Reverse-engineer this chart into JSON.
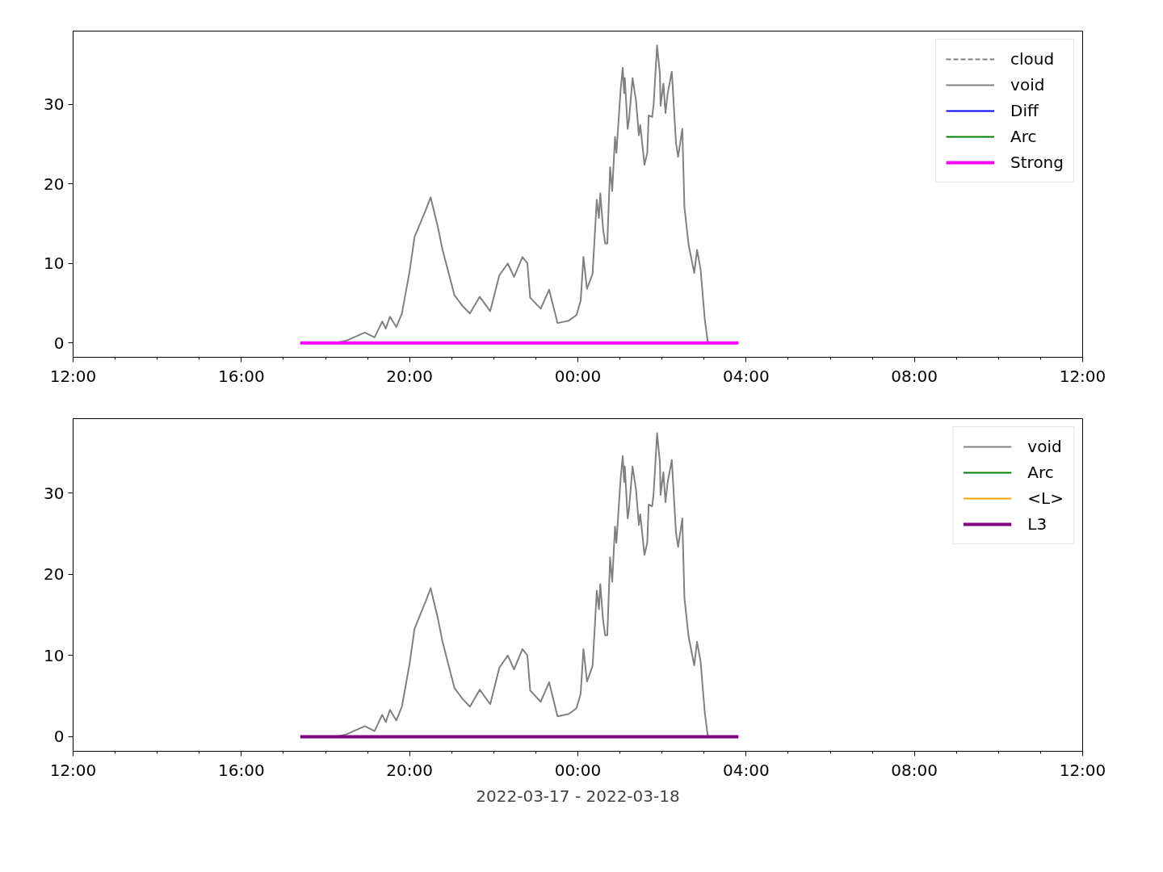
{
  "chart_data": [
    {
      "type": "line",
      "xlim": [
        "2022-03-17T12:00",
        "2022-03-18T12:00"
      ],
      "ylim": [
        -1.8,
        39.2
      ],
      "yticks": [
        0,
        10,
        20,
        30
      ],
      "grid": false,
      "legend": "top right",
      "xticks": [
        {
          "value": "2022-03-17T12:00",
          "label": "12:00"
        },
        {
          "value": "2022-03-17T13:00",
          "label": null
        },
        {
          "value": "2022-03-17T14:00",
          "label": null
        },
        {
          "value": "2022-03-17T15:00",
          "label": null
        },
        {
          "value": "2022-03-17T16:00",
          "label": "16:00"
        },
        {
          "value": "2022-03-17T17:00",
          "label": null
        },
        {
          "value": "2022-03-17T18:00",
          "label": null
        },
        {
          "value": "2022-03-17T19:00",
          "label": null
        },
        {
          "value": "2022-03-17T20:00",
          "label": "20:00"
        },
        {
          "value": "2022-03-17T21:00",
          "label": null
        },
        {
          "value": "2022-03-17T22:00",
          "label": null
        },
        {
          "value": "2022-03-17T23:00",
          "label": null
        },
        {
          "value": "2022-03-18T00:00",
          "label": "00:00"
        },
        {
          "value": "2022-03-18T01:00",
          "label": null
        },
        {
          "value": "2022-03-18T02:00",
          "label": null
        },
        {
          "value": "2022-03-18T03:00",
          "label": null
        },
        {
          "value": "2022-03-18T04:00",
          "label": "04:00"
        },
        {
          "value": "2022-03-18T05:00",
          "label": null
        },
        {
          "value": "2022-03-18T06:00",
          "label": null
        },
        {
          "value": "2022-03-18T07:00",
          "label": null
        },
        {
          "value": "2022-03-18T08:00",
          "label": "08:00"
        },
        {
          "value": "2022-03-18T09:00",
          "label": null
        },
        {
          "value": "2022-03-18T10:00",
          "label": null
        },
        {
          "value": "2022-03-18T11:00",
          "label": null
        },
        {
          "value": "2022-03-18T12:00",
          "label": "12:00"
        }
      ],
      "series": [
        {
          "name": "cloud",
          "color": "#808080",
          "line_style": "dashed"
        },
        {
          "name": "void",
          "color": "#808080",
          "x": [
            "2022-03-17T18:15",
            "2022-03-17T18:30",
            "2022-03-17T18:56",
            "2022-03-17T19:10",
            "2022-03-17T19:21",
            "2022-03-17T19:26",
            "2022-03-17T19:32",
            "2022-03-17T19:41",
            "2022-03-17T19:49",
            "2022-03-17T20:00",
            "2022-03-17T20:07",
            "2022-03-17T20:15",
            "2022-03-17T20:23",
            "2022-03-17T20:30",
            "2022-03-17T20:40",
            "2022-03-17T20:47",
            "2022-03-17T20:55",
            "2022-03-17T21:04",
            "2022-03-17T21:15",
            "2022-03-17T21:26",
            "2022-03-17T21:40",
            "2022-03-17T21:55",
            "2022-03-17T22:08",
            "2022-03-17T22:20",
            "2022-03-17T22:29",
            "2022-03-17T22:41",
            "2022-03-17T22:48",
            "2022-03-17T22:52",
            "2022-03-17T23:07",
            "2022-03-17T23:19",
            "2022-03-17T23:31",
            "2022-03-17T23:47",
            "2022-03-17T23:58",
            "2022-03-18T00:04",
            "2022-03-18T00:08",
            "2022-03-18T00:13",
            "2022-03-18T00:21",
            "2022-03-18T00:27",
            "2022-03-18T00:30",
            "2022-03-18T00:32",
            "2022-03-18T00:36",
            "2022-03-18T00:39",
            "2022-03-18T00:42",
            "2022-03-18T00:46",
            "2022-03-18T00:49",
            "2022-03-18T00:53",
            "2022-03-18T00:55",
            "2022-03-18T01:01",
            "2022-03-18T01:04",
            "2022-03-18T01:06",
            "2022-03-18T01:07",
            "2022-03-18T01:11",
            "2022-03-18T01:13",
            "2022-03-18T01:18",
            "2022-03-18T01:23",
            "2022-03-18T01:27",
            "2022-03-18T01:29",
            "2022-03-18T01:35",
            "2022-03-18T01:39",
            "2022-03-18T01:41",
            "2022-03-18T01:46",
            "2022-03-18T01:48",
            "2022-03-18T01:53",
            "2022-03-18T01:57",
            "2022-03-18T01:58",
            "2022-03-18T02:02",
            "2022-03-18T02:05",
            "2022-03-18T02:08",
            "2022-03-18T02:14",
            "2022-03-18T02:20",
            "2022-03-18T02:23",
            "2022-03-18T02:29",
            "2022-03-18T02:32",
            "2022-03-18T02:38",
            "2022-03-18T02:46",
            "2022-03-18T02:50",
            "2022-03-18T02:55",
            "2022-03-18T03:01",
            "2022-03-18T03:05",
            "2022-03-18T03:07"
          ],
          "values": [
            0.0,
            0.3,
            1.3,
            0.7,
            2.7,
            1.8,
            3.3,
            2.0,
            3.7,
            9.0,
            13.3,
            15.0,
            16.7,
            18.3,
            14.7,
            11.7,
            9.0,
            6.0,
            4.7,
            3.7,
            5.8,
            4.0,
            8.5,
            10.0,
            8.3,
            10.8,
            10.0,
            5.7,
            4.3,
            6.7,
            2.5,
            2.8,
            3.5,
            5.3,
            10.8,
            6.8,
            8.7,
            18.0,
            15.7,
            18.8,
            14.3,
            12.5,
            12.5,
            22.1,
            19.1,
            25.9,
            23.9,
            31.8,
            34.6,
            31.4,
            33.3,
            26.9,
            28.1,
            33.3,
            30.4,
            26.1,
            27.4,
            22.4,
            23.9,
            28.6,
            28.4,
            29.9,
            37.4,
            33.8,
            29.8,
            32.6,
            28.9,
            31.3,
            34.1,
            25.1,
            23.4,
            26.9,
            17.1,
            12.3,
            8.8,
            11.7,
            9.3,
            3.0,
            0.3,
            0.0
          ]
        },
        {
          "name": "Diff",
          "color": "#0000ff"
        },
        {
          "name": "Arc",
          "color": "#008000"
        },
        {
          "name": "Strong",
          "color": "#ff00ff",
          "x": [
            "2022-03-17T17:24",
            "2022-03-18T03:49"
          ],
          "values": [
            0,
            0
          ]
        }
      ]
    },
    {
      "type": "line",
      "xlabel": "2022-03-17 - 2022-03-18",
      "xlim": [
        "2022-03-17T12:00",
        "2022-03-18T12:00"
      ],
      "ylim": [
        -1.8,
        39.2
      ],
      "yticks": [
        0,
        10,
        20,
        30
      ],
      "grid": false,
      "legend": "top right",
      "xticks": [
        {
          "value": "2022-03-17T12:00",
          "label": "12:00"
        },
        {
          "value": "2022-03-17T13:00",
          "label": null
        },
        {
          "value": "2022-03-17T14:00",
          "label": null
        },
        {
          "value": "2022-03-17T15:00",
          "label": null
        },
        {
          "value": "2022-03-17T16:00",
          "label": "16:00"
        },
        {
          "value": "2022-03-17T17:00",
          "label": null
        },
        {
          "value": "2022-03-17T18:00",
          "label": null
        },
        {
          "value": "2022-03-17T19:00",
          "label": null
        },
        {
          "value": "2022-03-17T20:00",
          "label": "20:00"
        },
        {
          "value": "2022-03-17T21:00",
          "label": null
        },
        {
          "value": "2022-03-17T22:00",
          "label": null
        },
        {
          "value": "2022-03-17T23:00",
          "label": null
        },
        {
          "value": "2022-03-18T00:00",
          "label": "00:00"
        },
        {
          "value": "2022-03-18T01:00",
          "label": null
        },
        {
          "value": "2022-03-18T02:00",
          "label": null
        },
        {
          "value": "2022-03-18T03:00",
          "label": null
        },
        {
          "value": "2022-03-18T04:00",
          "label": "04:00"
        },
        {
          "value": "2022-03-18T05:00",
          "label": null
        },
        {
          "value": "2022-03-18T06:00",
          "label": null
        },
        {
          "value": "2022-03-18T07:00",
          "label": null
        },
        {
          "value": "2022-03-18T08:00",
          "label": "08:00"
        },
        {
          "value": "2022-03-18T09:00",
          "label": null
        },
        {
          "value": "2022-03-18T10:00",
          "label": null
        },
        {
          "value": "2022-03-18T11:00",
          "label": null
        },
        {
          "value": "2022-03-18T12:00",
          "label": "12:00"
        }
      ],
      "series": [
        {
          "name": "void",
          "color": "#808080",
          "x": [
            "2022-03-17T18:15",
            "2022-03-17T18:30",
            "2022-03-17T18:56",
            "2022-03-17T19:10",
            "2022-03-17T19:21",
            "2022-03-17T19:26",
            "2022-03-17T19:32",
            "2022-03-17T19:41",
            "2022-03-17T19:49",
            "2022-03-17T20:00",
            "2022-03-17T20:07",
            "2022-03-17T20:15",
            "2022-03-17T20:23",
            "2022-03-17T20:30",
            "2022-03-17T20:40",
            "2022-03-17T20:47",
            "2022-03-17T20:55",
            "2022-03-17T21:04",
            "2022-03-17T21:15",
            "2022-03-17T21:26",
            "2022-03-17T21:40",
            "2022-03-17T21:55",
            "2022-03-17T22:08",
            "2022-03-17T22:20",
            "2022-03-17T22:29",
            "2022-03-17T22:41",
            "2022-03-17T22:48",
            "2022-03-17T22:52",
            "2022-03-17T23:07",
            "2022-03-17T23:19",
            "2022-03-17T23:31",
            "2022-03-17T23:47",
            "2022-03-17T23:58",
            "2022-03-18T00:04",
            "2022-03-18T00:08",
            "2022-03-18T00:13",
            "2022-03-18T00:21",
            "2022-03-18T00:27",
            "2022-03-18T00:30",
            "2022-03-18T00:32",
            "2022-03-18T00:36",
            "2022-03-18T00:39",
            "2022-03-18T00:42",
            "2022-03-18T00:46",
            "2022-03-18T00:49",
            "2022-03-18T00:53",
            "2022-03-18T00:55",
            "2022-03-18T01:01",
            "2022-03-18T01:04",
            "2022-03-18T01:06",
            "2022-03-18T01:07",
            "2022-03-18T01:11",
            "2022-03-18T01:13",
            "2022-03-18T01:18",
            "2022-03-18T01:23",
            "2022-03-18T01:27",
            "2022-03-18T01:29",
            "2022-03-18T01:35",
            "2022-03-18T01:39",
            "2022-03-18T01:41",
            "2022-03-18T01:46",
            "2022-03-18T01:48",
            "2022-03-18T01:53",
            "2022-03-18T01:57",
            "2022-03-18T01:58",
            "2022-03-18T02:02",
            "2022-03-18T02:05",
            "2022-03-18T02:08",
            "2022-03-18T02:14",
            "2022-03-18T02:20",
            "2022-03-18T02:23",
            "2022-03-18T02:29",
            "2022-03-18T02:32",
            "2022-03-18T02:38",
            "2022-03-18T02:46",
            "2022-03-18T02:50",
            "2022-03-18T02:55",
            "2022-03-18T03:01",
            "2022-03-18T03:05",
            "2022-03-18T03:07"
          ],
          "values": [
            0.0,
            0.3,
            1.3,
            0.7,
            2.7,
            1.8,
            3.3,
            2.0,
            3.7,
            9.0,
            13.3,
            15.0,
            16.7,
            18.3,
            14.7,
            11.7,
            9.0,
            6.0,
            4.7,
            3.7,
            5.8,
            4.0,
            8.5,
            10.0,
            8.3,
            10.8,
            10.0,
            5.7,
            4.3,
            6.7,
            2.5,
            2.8,
            3.5,
            5.3,
            10.8,
            6.8,
            8.7,
            18.0,
            15.7,
            18.8,
            14.3,
            12.5,
            12.5,
            22.1,
            19.1,
            25.9,
            23.9,
            31.8,
            34.6,
            31.4,
            33.3,
            26.9,
            28.1,
            33.3,
            30.4,
            26.1,
            27.4,
            22.4,
            23.9,
            28.6,
            28.4,
            29.9,
            37.4,
            33.8,
            29.8,
            32.6,
            28.9,
            31.3,
            34.1,
            25.1,
            23.4,
            26.9,
            17.1,
            12.3,
            8.8,
            11.7,
            9.3,
            3.0,
            0.3,
            0.0
          ]
        },
        {
          "name": "Arc",
          "color": "#008000"
        },
        {
          "name": "<L>",
          "color": "#ffa500"
        },
        {
          "name": "L3",
          "color": "#800080",
          "x": [
            "2022-03-17T17:24",
            "2022-03-18T03:49"
          ],
          "values": [
            0,
            0
          ]
        }
      ]
    }
  ]
}
